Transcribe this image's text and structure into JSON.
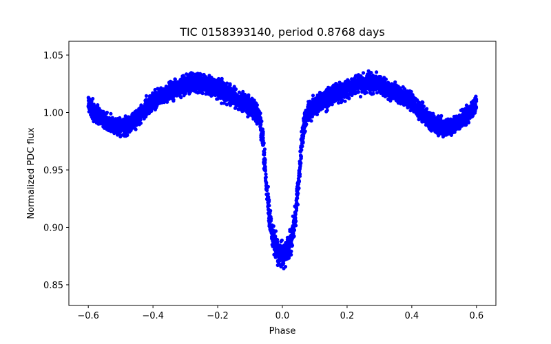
{
  "chart_data": {
    "type": "scatter",
    "title": "TIC 0158393140, period 0.8768 days",
    "xlabel": "Phase",
    "ylabel": "Normalized PDC flux",
    "xlim": [
      -0.66,
      0.66
    ],
    "ylim": [
      0.832,
      1.062
    ],
    "xticks": [
      -0.6,
      -0.4,
      -0.2,
      0.0,
      0.2,
      0.4,
      0.6
    ],
    "xtick_labels": [
      "−0.6",
      "−0.4",
      "−0.2",
      "0.0",
      "0.2",
      "0.4",
      "0.6"
    ],
    "yticks": [
      0.85,
      0.9,
      0.95,
      1.0,
      1.05
    ],
    "ytick_labels": [
      "0.85",
      "0.90",
      "0.95",
      "1.00",
      "1.05"
    ],
    "grid": false,
    "series": [
      {
        "color": "#0000ff",
        "marker": "circle",
        "x": [
          -0.6,
          -0.58,
          -0.56,
          -0.54,
          -0.52,
          -0.5,
          -0.48,
          -0.46,
          -0.44,
          -0.42,
          -0.4,
          -0.38,
          -0.36,
          -0.34,
          -0.32,
          -0.3,
          -0.28,
          -0.26,
          -0.24,
          -0.22,
          -0.2,
          -0.18,
          -0.16,
          -0.14,
          -0.12,
          -0.1,
          -0.09,
          -0.08,
          -0.07,
          -0.06,
          -0.05,
          -0.04,
          -0.03,
          -0.02,
          -0.01,
          0.0,
          0.01,
          0.02,
          0.03,
          0.04,
          0.05,
          0.06,
          0.07,
          0.08,
          0.09,
          0.1,
          0.12,
          0.14,
          0.16,
          0.18,
          0.2,
          0.22,
          0.24,
          0.26,
          0.28,
          0.3,
          0.32,
          0.34,
          0.36,
          0.38,
          0.4,
          0.42,
          0.44,
          0.46,
          0.48,
          0.5,
          0.52,
          0.54,
          0.56,
          0.58,
          0.6
        ],
        "y": [
          1.008,
          1.0,
          0.995,
          0.99,
          0.988,
          0.987,
          0.988,
          0.992,
          0.998,
          1.004,
          1.009,
          1.013,
          1.016,
          1.019,
          1.022,
          1.024,
          1.025,
          1.026,
          1.025,
          1.023,
          1.021,
          1.018,
          1.015,
          1.012,
          1.009,
          1.006,
          1.004,
          1.0,
          0.993,
          0.975,
          0.94,
          0.91,
          0.892,
          0.882,
          0.877,
          0.876,
          0.877,
          0.882,
          0.892,
          0.91,
          0.94,
          0.975,
          0.993,
          1.0,
          1.004,
          1.006,
          1.009,
          1.012,
          1.015,
          1.018,
          1.021,
          1.023,
          1.025,
          1.026,
          1.025,
          1.024,
          1.022,
          1.019,
          1.016,
          1.013,
          1.009,
          1.004,
          0.998,
          0.992,
          0.988,
          0.987,
          0.988,
          0.99,
          0.995,
          1.0,
          1.008
        ],
        "scatter": [
          0.011,
          0.011,
          0.011,
          0.011,
          0.011,
          0.011,
          0.011,
          0.011,
          0.011,
          0.011,
          0.011,
          0.011,
          0.011,
          0.012,
          0.012,
          0.012,
          0.012,
          0.012,
          0.012,
          0.012,
          0.012,
          0.012,
          0.012,
          0.012,
          0.012,
          0.012,
          0.012,
          0.012,
          0.013,
          0.016,
          0.016,
          0.016,
          0.015,
          0.015,
          0.015,
          0.015,
          0.015,
          0.015,
          0.015,
          0.016,
          0.016,
          0.016,
          0.013,
          0.012,
          0.012,
          0.012,
          0.012,
          0.012,
          0.012,
          0.012,
          0.012,
          0.012,
          0.012,
          0.012,
          0.012,
          0.012,
          0.012,
          0.012,
          0.011,
          0.011,
          0.011,
          0.011,
          0.011,
          0.011,
          0.011,
          0.011,
          0.011,
          0.011,
          0.011,
          0.011,
          0.011
        ]
      }
    ]
  }
}
